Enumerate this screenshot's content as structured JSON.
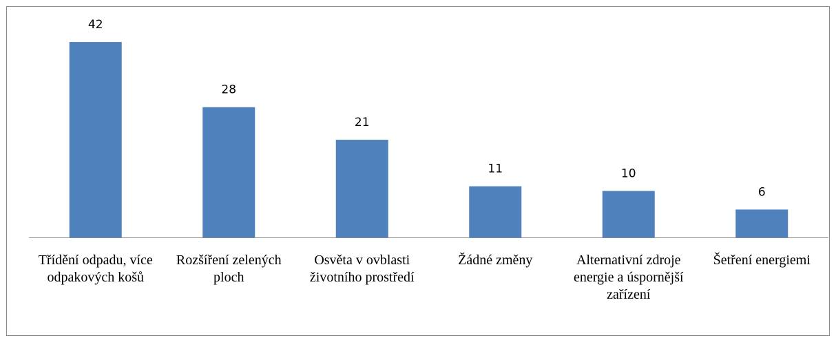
{
  "chart_data": {
    "type": "bar",
    "categories": [
      "Třídění odpadu, více odpakových košů",
      "Rozšíření zelených ploch",
      "Osvěta v ovblasti životního prostředí",
      "Žádné změny",
      "Alternativní zdroje energie a úspornější zařízení",
      "Šetření energiemi"
    ],
    "values": [
      42,
      28,
      21,
      11,
      10,
      6
    ],
    "color": "#4f81bd"
  }
}
